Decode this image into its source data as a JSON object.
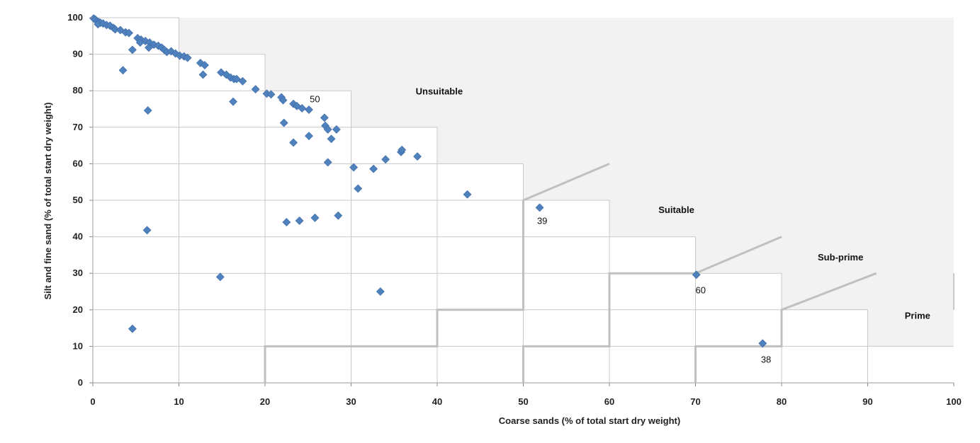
{
  "chart_data": {
    "type": "scatter",
    "xlabel": "Coarse sands (% of total start dry weight)",
    "ylabel": "Silt and fine sand (% of total start dry weight)",
    "xlim": [
      0,
      100
    ],
    "ylim": [
      0,
      100
    ],
    "x_ticks": [
      "0",
      "10",
      "20",
      "30",
      "40",
      "50",
      "60",
      "70",
      "80",
      "90",
      "100"
    ],
    "y_ticks": [
      "0",
      "10",
      "20",
      "30",
      "40",
      "50",
      "60",
      "70",
      "80",
      "90",
      "100"
    ],
    "grid": true,
    "marker_color": "#4f81bd",
    "zone_fill_color": "#f2f2f2",
    "zone_line_color": "#c0c0c0",
    "points": [
      {
        "x": 0.1,
        "y": 99.8
      },
      {
        "x": 0.3,
        "y": 99.5
      },
      {
        "x": 0.5,
        "y": 99.0
      },
      {
        "x": 0.7,
        "y": 98.8
      },
      {
        "x": 0.9,
        "y": 98.6
      },
      {
        "x": 0.6,
        "y": 98.2
      },
      {
        "x": 1.2,
        "y": 98.4
      },
      {
        "x": 1.6,
        "y": 98.0
      },
      {
        "x": 2.0,
        "y": 97.8
      },
      {
        "x": 2.4,
        "y": 97.2
      },
      {
        "x": 2.6,
        "y": 96.8
      },
      {
        "x": 3.2,
        "y": 96.6
      },
      {
        "x": 3.8,
        "y": 96.0
      },
      {
        "x": 4.2,
        "y": 95.8
      },
      {
        "x": 5.2,
        "y": 94.4
      },
      {
        "x": 5.6,
        "y": 94.0
      },
      {
        "x": 6.1,
        "y": 93.6
      },
      {
        "x": 5.5,
        "y": 93.2
      },
      {
        "x": 6.6,
        "y": 93.2
      },
      {
        "x": 7.1,
        "y": 92.6
      },
      {
        "x": 7.6,
        "y": 92.3
      },
      {
        "x": 8.0,
        "y": 91.8
      },
      {
        "x": 8.3,
        "y": 91.2
      },
      {
        "x": 8.6,
        "y": 90.6
      },
      {
        "x": 9.1,
        "y": 90.8
      },
      {
        "x": 9.6,
        "y": 90.2
      },
      {
        "x": 10.1,
        "y": 89.6
      },
      {
        "x": 10.6,
        "y": 89.4
      },
      {
        "x": 11.0,
        "y": 89.0
      },
      {
        "x": 6.5,
        "y": 91.8
      },
      {
        "x": 4.6,
        "y": 91.2
      },
      {
        "x": 12.5,
        "y": 87.6
      },
      {
        "x": 13.0,
        "y": 87.0
      },
      {
        "x": 12.8,
        "y": 84.4
      },
      {
        "x": 14.9,
        "y": 85.0
      },
      {
        "x": 15.5,
        "y": 84.4
      },
      {
        "x": 16.0,
        "y": 83.6
      },
      {
        "x": 16.4,
        "y": 83.2
      },
      {
        "x": 16.7,
        "y": 83.2
      },
      {
        "x": 17.4,
        "y": 82.6
      },
      {
        "x": 18.9,
        "y": 80.4
      },
      {
        "x": 20.2,
        "y": 79.2
      },
      {
        "x": 20.7,
        "y": 79.0
      },
      {
        "x": 21.9,
        "y": 78.2
      },
      {
        "x": 22.1,
        "y": 77.4
      },
      {
        "x": 16.3,
        "y": 77.0
      },
      {
        "x": 23.3,
        "y": 76.4
      },
      {
        "x": 23.7,
        "y": 75.8
      },
      {
        "x": 24.3,
        "y": 75.2
      },
      {
        "x": 25.1,
        "y": 74.8
      },
      {
        "x": 6.4,
        "y": 74.6
      },
      {
        "x": 3.5,
        "y": 85.6
      },
      {
        "x": 26.9,
        "y": 72.6
      },
      {
        "x": 27.0,
        "y": 70.4
      },
      {
        "x": 27.3,
        "y": 69.4
      },
      {
        "x": 28.3,
        "y": 69.4
      },
      {
        "x": 22.2,
        "y": 71.2
      },
      {
        "x": 25.1,
        "y": 67.6
      },
      {
        "x": 27.7,
        "y": 66.8
      },
      {
        "x": 23.3,
        "y": 65.8
      },
      {
        "x": 27.3,
        "y": 60.4
      },
      {
        "x": 30.3,
        "y": 59.0
      },
      {
        "x": 32.6,
        "y": 58.6
      },
      {
        "x": 34.0,
        "y": 61.2
      },
      {
        "x": 35.8,
        "y": 63.2
      },
      {
        "x": 35.9,
        "y": 63.8
      },
      {
        "x": 37.7,
        "y": 62.0
      },
      {
        "x": 30.8,
        "y": 53.2
      },
      {
        "x": 43.5,
        "y": 51.6
      },
      {
        "x": 51.9,
        "y": 48.0
      },
      {
        "x": 28.5,
        "y": 45.8
      },
      {
        "x": 25.8,
        "y": 45.2
      },
      {
        "x": 24.0,
        "y": 44.4
      },
      {
        "x": 22.5,
        "y": 44.0
      },
      {
        "x": 6.3,
        "y": 41.8
      },
      {
        "x": 14.8,
        "y": 29.0
      },
      {
        "x": 33.4,
        "y": 25.0
      },
      {
        "x": 70.1,
        "y": 29.6
      },
      {
        "x": 4.6,
        "y": 14.8
      },
      {
        "x": 77.8,
        "y": 10.8
      }
    ],
    "zone_labels": [
      {
        "text": "Unsuitable",
        "x": 37.5,
        "y": 79
      },
      {
        "text": "Suitable",
        "x": 65.7,
        "y": 46.5
      },
      {
        "text": "Sub-prime",
        "x": 84.2,
        "y": 33.5
      },
      {
        "text": "Prime",
        "x": 94.3,
        "y": 17.5
      }
    ],
    "number_labels": [
      {
        "text": "50",
        "x": 25.2,
        "y": 76.8
      },
      {
        "text": "39",
        "x": 51.6,
        "y": 43.5
      },
      {
        "text": "60",
        "x": 70.0,
        "y": 24.5
      },
      {
        "text": "38",
        "x": 77.6,
        "y": 5.5
      }
    ]
  }
}
